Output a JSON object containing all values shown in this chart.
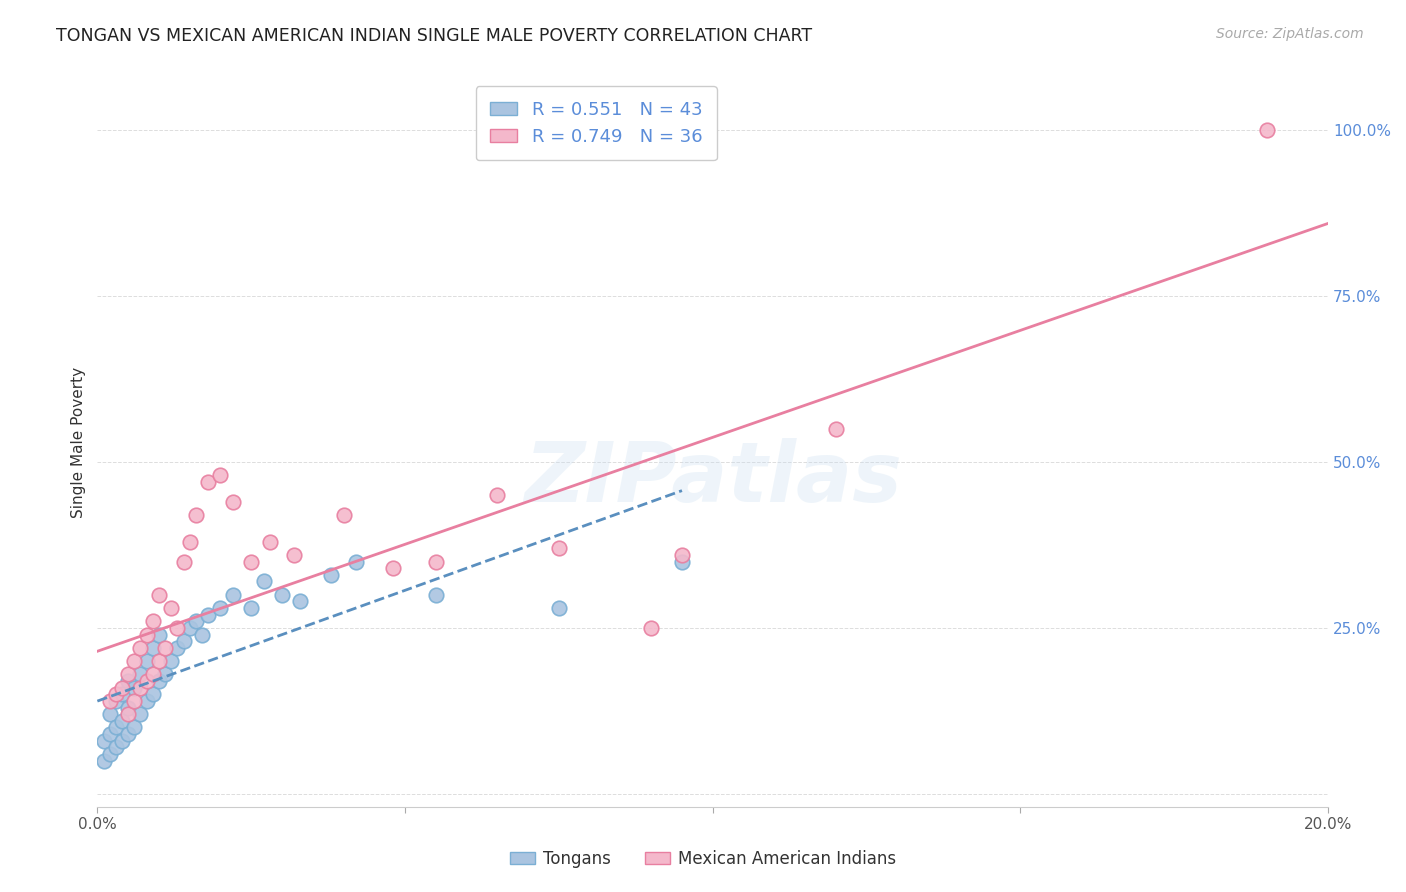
{
  "title": "TONGAN VS MEXICAN AMERICAN INDIAN SINGLE MALE POVERTY CORRELATION CHART",
  "source": "Source: ZipAtlas.com",
  "ylabel": "Single Male Poverty",
  "background_color": "#ffffff",
  "watermark": "ZIPatlas",
  "tongan_color": "#aac4e0",
  "tongan_edge": "#7bafd4",
  "tongan_line_color": "#5a8fbf",
  "mexican_color": "#f4b8cb",
  "mexican_edge": "#e87fa0",
  "mexican_line_color": "#e87fa0",
  "tongan_R": 0.551,
  "tongan_N": 43,
  "mexican_R": 0.749,
  "mexican_N": 36,
  "legend_label_tongan": "Tongans",
  "legend_label_mexican": "Mexican American Indians",
  "xlim": [
    0.0,
    0.2
  ],
  "ylim": [
    -0.02,
    1.08
  ],
  "label_color": "#5b8dd9",
  "tongan_x": [
    0.001,
    0.001,
    0.002,
    0.002,
    0.002,
    0.003,
    0.003,
    0.003,
    0.004,
    0.004,
    0.004,
    0.005,
    0.005,
    0.005,
    0.006,
    0.006,
    0.007,
    0.007,
    0.008,
    0.008,
    0.009,
    0.009,
    0.01,
    0.01,
    0.011,
    0.012,
    0.013,
    0.014,
    0.015,
    0.016,
    0.017,
    0.018,
    0.02,
    0.022,
    0.025,
    0.027,
    0.03,
    0.033,
    0.038,
    0.042,
    0.055,
    0.075,
    0.095
  ],
  "tongan_y": [
    0.05,
    0.08,
    0.06,
    0.09,
    0.12,
    0.07,
    0.1,
    0.14,
    0.08,
    0.11,
    0.15,
    0.09,
    0.13,
    0.17,
    0.1,
    0.16,
    0.12,
    0.18,
    0.14,
    0.2,
    0.15,
    0.22,
    0.17,
    0.24,
    0.18,
    0.2,
    0.22,
    0.23,
    0.25,
    0.26,
    0.24,
    0.27,
    0.28,
    0.3,
    0.28,
    0.32,
    0.3,
    0.29,
    0.33,
    0.35,
    0.3,
    0.28,
    0.35
  ],
  "mexican_x": [
    0.002,
    0.003,
    0.004,
    0.005,
    0.005,
    0.006,
    0.006,
    0.007,
    0.007,
    0.008,
    0.008,
    0.009,
    0.009,
    0.01,
    0.01,
    0.011,
    0.012,
    0.013,
    0.014,
    0.015,
    0.016,
    0.018,
    0.02,
    0.022,
    0.025,
    0.028,
    0.032,
    0.04,
    0.048,
    0.055,
    0.065,
    0.075,
    0.09,
    0.095,
    0.12,
    0.19
  ],
  "mexican_y": [
    0.14,
    0.15,
    0.16,
    0.12,
    0.18,
    0.14,
    0.2,
    0.16,
    0.22,
    0.17,
    0.24,
    0.18,
    0.26,
    0.2,
    0.3,
    0.22,
    0.28,
    0.25,
    0.35,
    0.38,
    0.42,
    0.47,
    0.48,
    0.44,
    0.35,
    0.38,
    0.36,
    0.42,
    0.34,
    0.35,
    0.45,
    0.37,
    0.25,
    0.36,
    0.55,
    1.0
  ]
}
